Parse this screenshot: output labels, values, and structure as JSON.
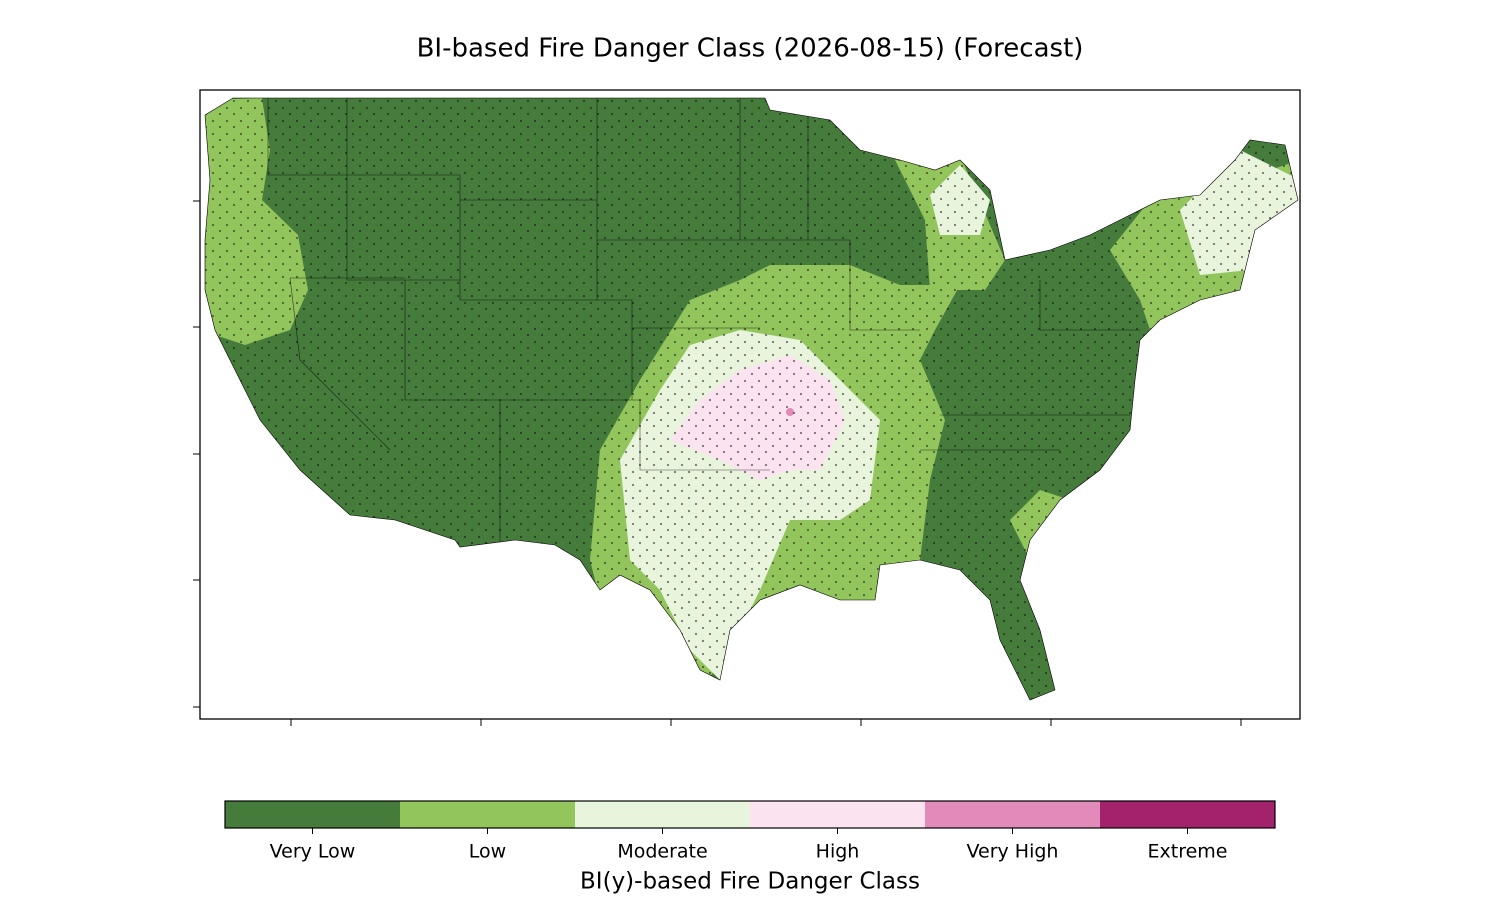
{
  "title": "BI-based Fire Danger Class (2026-08-15) (Forecast)",
  "colorbar": {
    "label": "BI(y)-based Fire Danger Class",
    "classes": [
      {
        "name": "Very Low",
        "color": "#457b3b"
      },
      {
        "name": "Low",
        "color": "#93c55d"
      },
      {
        "name": "Moderate",
        "color": "#e8f4dc"
      },
      {
        "name": "High",
        "color": "#fbe3f0"
      },
      {
        "name": "Very High",
        "color": "#e28ab9"
      },
      {
        "name": "Extreme",
        "color": "#a2226b"
      }
    ]
  }
}
